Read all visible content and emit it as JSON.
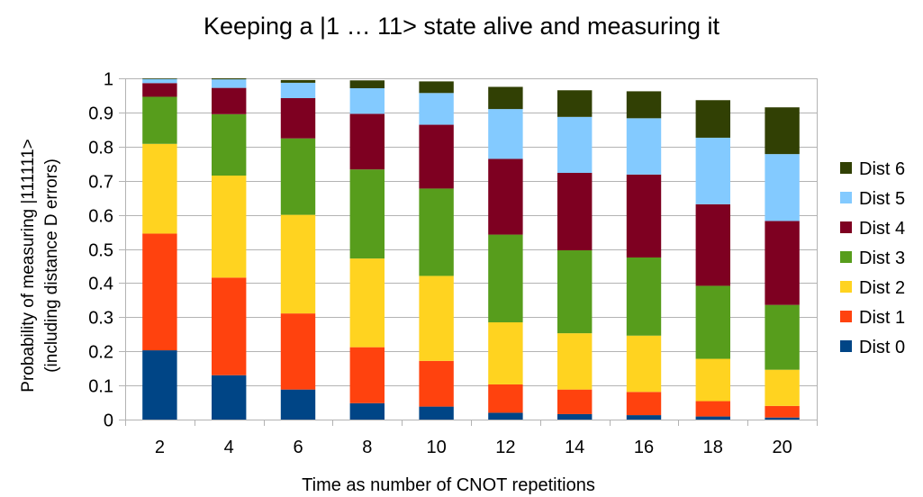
{
  "chart_data": {
    "type": "bar",
    "stacked": true,
    "title": "Keeping a |1 … 11> state alive and measuring it",
    "xlabel": "Time as number of CNOT repetitions",
    "ylabel": "Probability of measuring |111111>",
    "ylabel2": "(including distance D errors)",
    "categories": [
      "2",
      "4",
      "6",
      "8",
      "10",
      "12",
      "14",
      "16",
      "18",
      "20"
    ],
    "ylim": [
      0,
      1
    ],
    "yticks": [
      "0",
      "0.1",
      "0.2",
      "0.3",
      "0.4",
      "0.5",
      "0.6",
      "0.7",
      "0.8",
      "0.9",
      "1"
    ],
    "grid": true,
    "legend_position": "right",
    "series": [
      {
        "name": "Dist 0",
        "color": "#004586",
        "values": [
          0.203,
          0.13,
          0.088,
          0.048,
          0.038,
          0.02,
          0.016,
          0.013,
          0.009,
          0.006
        ]
      },
      {
        "name": "Dist 1",
        "color": "#ff420e",
        "values": [
          0.342,
          0.286,
          0.223,
          0.164,
          0.134,
          0.083,
          0.072,
          0.068,
          0.045,
          0.034
        ]
      },
      {
        "name": "Dist 2",
        "color": "#ffd320",
        "values": [
          0.263,
          0.299,
          0.289,
          0.26,
          0.249,
          0.182,
          0.165,
          0.165,
          0.124,
          0.106
        ]
      },
      {
        "name": "Dist 3",
        "color": "#579d1c",
        "values": [
          0.138,
          0.18,
          0.224,
          0.261,
          0.256,
          0.257,
          0.243,
          0.229,
          0.214,
          0.19
        ]
      },
      {
        "name": "Dist 4",
        "color": "#7e0021",
        "values": [
          0.04,
          0.077,
          0.118,
          0.163,
          0.187,
          0.222,
          0.227,
          0.243,
          0.239,
          0.246
        ]
      },
      {
        "name": "Dist 5",
        "color": "#83caff",
        "values": [
          0.012,
          0.025,
          0.045,
          0.075,
          0.093,
          0.146,
          0.164,
          0.165,
          0.195,
          0.196
        ]
      },
      {
        "name": "Dist 6",
        "color": "#314004",
        "values": [
          0.002,
          0.003,
          0.008,
          0.023,
          0.034,
          0.065,
          0.078,
          0.079,
          0.11,
          0.137
        ]
      }
    ]
  }
}
